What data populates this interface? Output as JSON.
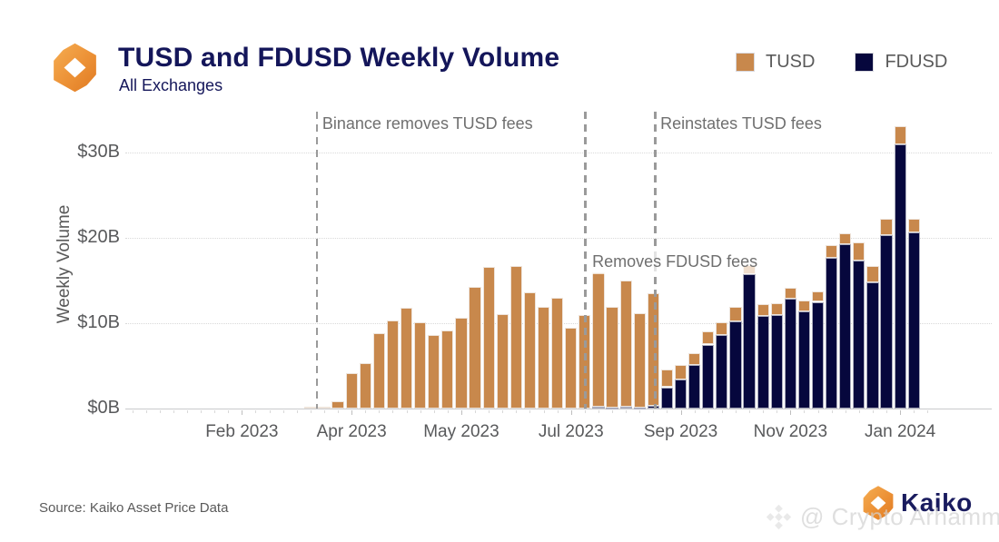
{
  "header": {
    "title": "TUSD and FDUSD Weekly Volume",
    "subtitle": "All Exchanges"
  },
  "legend": [
    {
      "label": "TUSD",
      "color": "#C8884C"
    },
    {
      "label": "FDUSD",
      "color": "#06073D"
    }
  ],
  "chart_data": {
    "type": "bar",
    "stacked": true,
    "title": "TUSD and FDUSD Weekly Volume",
    "subtitle": "All Exchanges",
    "xlabel": "",
    "ylabel": "Weekly Volume",
    "unit": "billions USD",
    "ylim": [
      0,
      34
    ],
    "grid": "horizontal-dotted",
    "legend_position": "top-right",
    "y_ticks": [
      {
        "value": 0,
        "label": "$0B"
      },
      {
        "value": 10,
        "label": "$10B"
      },
      {
        "value": 20,
        "label": "$20B"
      },
      {
        "value": 30,
        "label": "$30B"
      }
    ],
    "x_ticks": [
      {
        "slot": 8,
        "label": "Feb 2023"
      },
      {
        "slot": 16,
        "label": "Apr 2023"
      },
      {
        "slot": 24,
        "label": "May 2023"
      },
      {
        "slot": 32,
        "label": "Jul 2023"
      },
      {
        "slot": 40,
        "label": "Sep 2023"
      },
      {
        "slot": 48,
        "label": "Nov 2023"
      },
      {
        "slot": 56,
        "label": "Jan 2024"
      }
    ],
    "series": [
      {
        "name": "TUSD",
        "color": "#C8884C",
        "values": [
          0.2,
          0.2,
          0.9,
          4.1,
          5.3,
          8.8,
          10.3,
          11.8,
          10.1,
          8.6,
          9.1,
          10.6,
          14.3,
          16.6,
          11.1,
          16.7,
          13.6,
          11.9,
          13.0,
          9.5,
          11.0,
          15.8,
          11.8,
          14.8,
          11.0,
          13.2,
          2.1,
          1.7,
          1.4,
          1.5,
          1.5,
          1.7,
          1.1,
          1.4,
          1.3,
          1.2,
          1.3,
          1.2,
          1.5,
          1.2,
          2.2,
          1.9,
          1.9,
          2.1,
          1.6
        ]
      },
      {
        "name": "FDUSD",
        "color": "#06073D",
        "values": [
          0,
          0,
          0,
          0,
          0,
          0,
          0,
          0,
          0,
          0,
          0,
          0,
          0,
          0,
          0,
          0,
          0,
          0,
          0,
          0,
          0,
          0.2,
          0.1,
          0.2,
          0.15,
          0.3,
          2.5,
          3.4,
          5.1,
          7.5,
          8.6,
          10.2,
          15.7,
          10.8,
          11.0,
          12.9,
          11.4,
          12.5,
          17.7,
          19.3,
          17.3,
          14.8,
          20.3,
          31.0,
          20.6
        ]
      }
    ],
    "bar_interval": "weekly",
    "start_slot": 13,
    "total_slots": 59,
    "annotations": [
      {
        "text": "Binance removes TUSD fees",
        "line_slot": 13.9,
        "label_y": 126,
        "boxed": false
      },
      {
        "text": "Removes FDUSD fees",
        "line_slot": 33.45,
        "label_y": 276,
        "boxed": true
      },
      {
        "text": "Reinstates TUSD fees",
        "line_slot": 38.55,
        "label_y": 126,
        "boxed": false
      }
    ]
  },
  "footer": {
    "source": "Source: Kaiko Asset Price Data",
    "brand": "Kaiko",
    "watermark": "@ Crypto Arhamm"
  }
}
